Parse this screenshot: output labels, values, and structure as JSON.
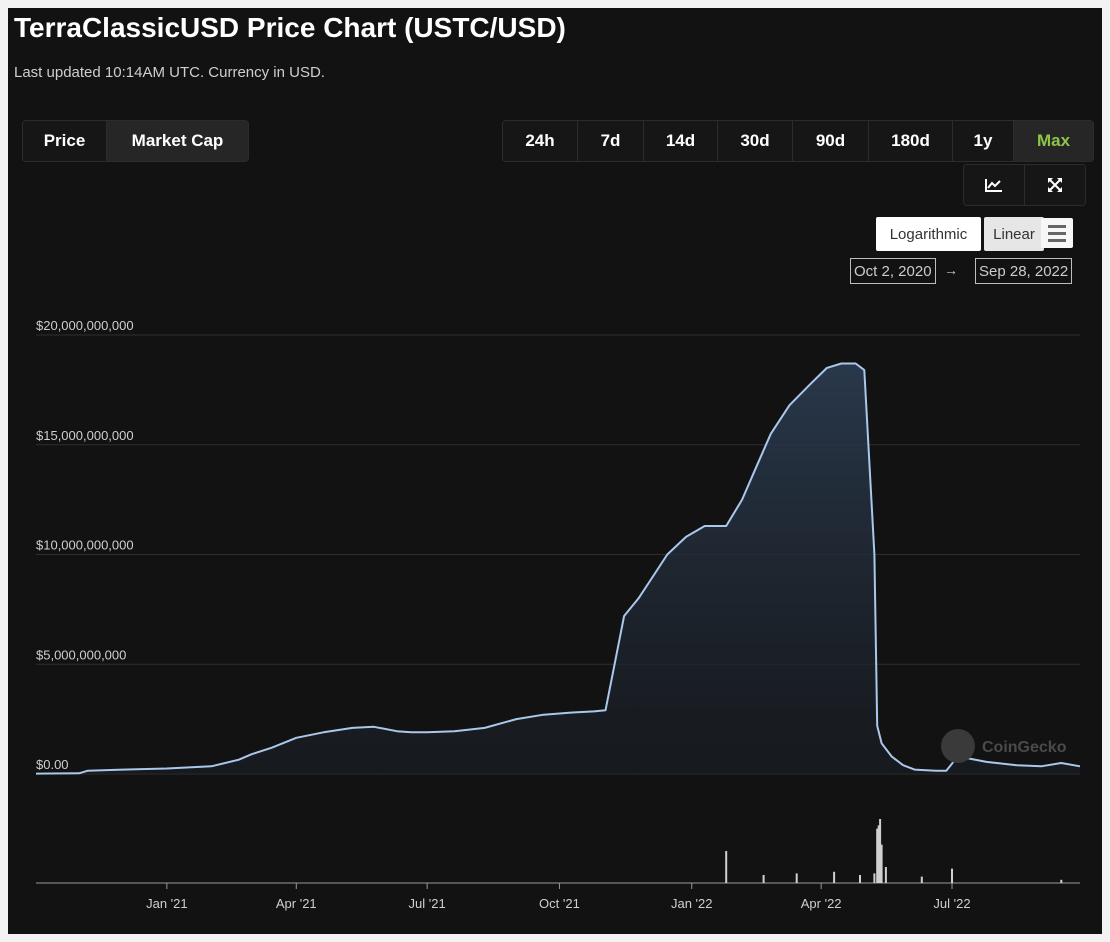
{
  "header": {
    "title": "TerraClassicUSD Price Chart (USTC/USD)",
    "subtitle": "Last updated 10:14AM UTC. Currency in USD."
  },
  "tabs": [
    {
      "label": "Price",
      "active": false
    },
    {
      "label": "Market Cap",
      "active": true
    }
  ],
  "ranges": [
    {
      "label": "24h",
      "active": false
    },
    {
      "label": "7d",
      "active": false
    },
    {
      "label": "14d",
      "active": false
    },
    {
      "label": "30d",
      "active": false
    },
    {
      "label": "90d",
      "active": false
    },
    {
      "label": "180d",
      "active": false
    },
    {
      "label": "1y",
      "active": false
    },
    {
      "label": "Max",
      "active": true
    }
  ],
  "toolbar": {
    "icons": [
      "line-chart-icon",
      "expand-icon"
    ],
    "log_label": "Logarithmic",
    "linear_label": "Linear",
    "menu_icon": "hamburger-menu-icon",
    "date_from": "Oct 2, 2020",
    "date_arrow": "→",
    "date_to": "Sep 28, 2022"
  },
  "watermark": "CoinGecko",
  "colors": {
    "background": "#121212",
    "line": "#a9c8ec",
    "area_top": "#2a3a4e",
    "volume": "#d0d0d0",
    "active_range": "#8dc647",
    "grid": "#2e2e2e"
  },
  "chart_data": {
    "type": "area",
    "title": "",
    "xlabel": "",
    "ylabel": "",
    "ylim": [
      0,
      20000000000
    ],
    "y_ticks": [
      {
        "value": 20000000000,
        "label": "$20,000,000,000"
      },
      {
        "value": 15000000000,
        "label": "$15,000,000,000"
      },
      {
        "value": 10000000000,
        "label": "$10,000,000,000"
      },
      {
        "value": 5000000000,
        "label": "$5,000,000,000"
      },
      {
        "value": 0,
        "label": "$0.00"
      }
    ],
    "xlim": [
      "2020-10-02",
      "2022-09-28"
    ],
    "x_ticks": [
      {
        "date": "2021-01-01",
        "label": "Jan '21"
      },
      {
        "date": "2021-04-01",
        "label": "Apr '21"
      },
      {
        "date": "2021-07-01",
        "label": "Jul '21"
      },
      {
        "date": "2021-10-01",
        "label": "Oct '21"
      },
      {
        "date": "2022-01-01",
        "label": "Jan '22"
      },
      {
        "date": "2022-04-01",
        "label": "Apr '22"
      },
      {
        "date": "2022-07-01",
        "label": "Jul '22"
      }
    ],
    "series": [
      {
        "x": [
          "2020-10-02",
          "2020-11-01",
          "2020-11-07",
          "2020-12-01",
          "2021-01-01",
          "2021-02-01",
          "2021-02-20",
          "2021-03-01",
          "2021-03-15",
          "2021-04-01",
          "2021-04-20",
          "2021-05-10",
          "2021-05-25",
          "2021-06-10",
          "2021-06-20",
          "2021-07-01",
          "2021-07-20",
          "2021-08-10",
          "2021-09-01",
          "2021-09-20",
          "2021-10-10",
          "2021-10-25",
          "2021-11-02",
          "2021-11-15",
          "2021-11-25",
          "2021-12-05",
          "2021-12-15",
          "2021-12-28",
          "2022-01-10",
          "2022-01-25",
          "2022-02-05",
          "2022-02-15",
          "2022-02-25",
          "2022-03-10",
          "2022-03-25",
          "2022-04-05",
          "2022-04-15",
          "2022-04-25",
          "2022-05-01",
          "2022-05-08",
          "2022-05-10",
          "2022-05-13",
          "2022-05-20",
          "2022-05-28",
          "2022-06-05",
          "2022-06-20",
          "2022-06-27",
          "2022-07-05",
          "2022-07-25",
          "2022-08-15",
          "2022-09-01",
          "2022-09-15",
          "2022-09-28"
        ],
        "y": [
          20000000,
          30000000,
          150000000,
          200000000,
          250000000,
          350000000,
          650000000,
          900000000,
          1200000000,
          1650000000,
          1900000000,
          2100000000,
          2150000000,
          1950000000,
          1900000000,
          1900000000,
          1950000000,
          2100000000,
          2500000000,
          2700000000,
          2800000000,
          2850000000,
          2900000000,
          7200000000,
          8000000000,
          9000000000,
          10000000000,
          10800000000,
          11300000000,
          11300000000,
          12500000000,
          14000000000,
          15500000000,
          16800000000,
          17800000000,
          18500000000,
          18700000000,
          18700000000,
          18400000000,
          10000000000,
          2200000000,
          1400000000,
          800000000,
          400000000,
          200000000,
          150000000,
          150000000,
          800000000,
          550000000,
          400000000,
          350000000,
          500000000,
          350000000
        ]
      }
    ],
    "volume": [
      {
        "date": "2022-01-25",
        "value": 1.0
      },
      {
        "date": "2022-02-20",
        "value": 0.25
      },
      {
        "date": "2022-03-15",
        "value": 0.3
      },
      {
        "date": "2022-04-10",
        "value": 0.35
      },
      {
        "date": "2022-04-28",
        "value": 0.25
      },
      {
        "date": "2022-05-08",
        "value": 0.3
      },
      {
        "date": "2022-05-10",
        "value": 1.7
      },
      {
        "date": "2022-05-11",
        "value": 1.8
      },
      {
        "date": "2022-05-12",
        "value": 2.0
      },
      {
        "date": "2022-05-13",
        "value": 1.2
      },
      {
        "date": "2022-05-16",
        "value": 0.5
      },
      {
        "date": "2022-06-10",
        "value": 0.2
      },
      {
        "date": "2022-07-01",
        "value": 0.45
      },
      {
        "date": "2022-09-15",
        "value": 0.1
      }
    ]
  }
}
